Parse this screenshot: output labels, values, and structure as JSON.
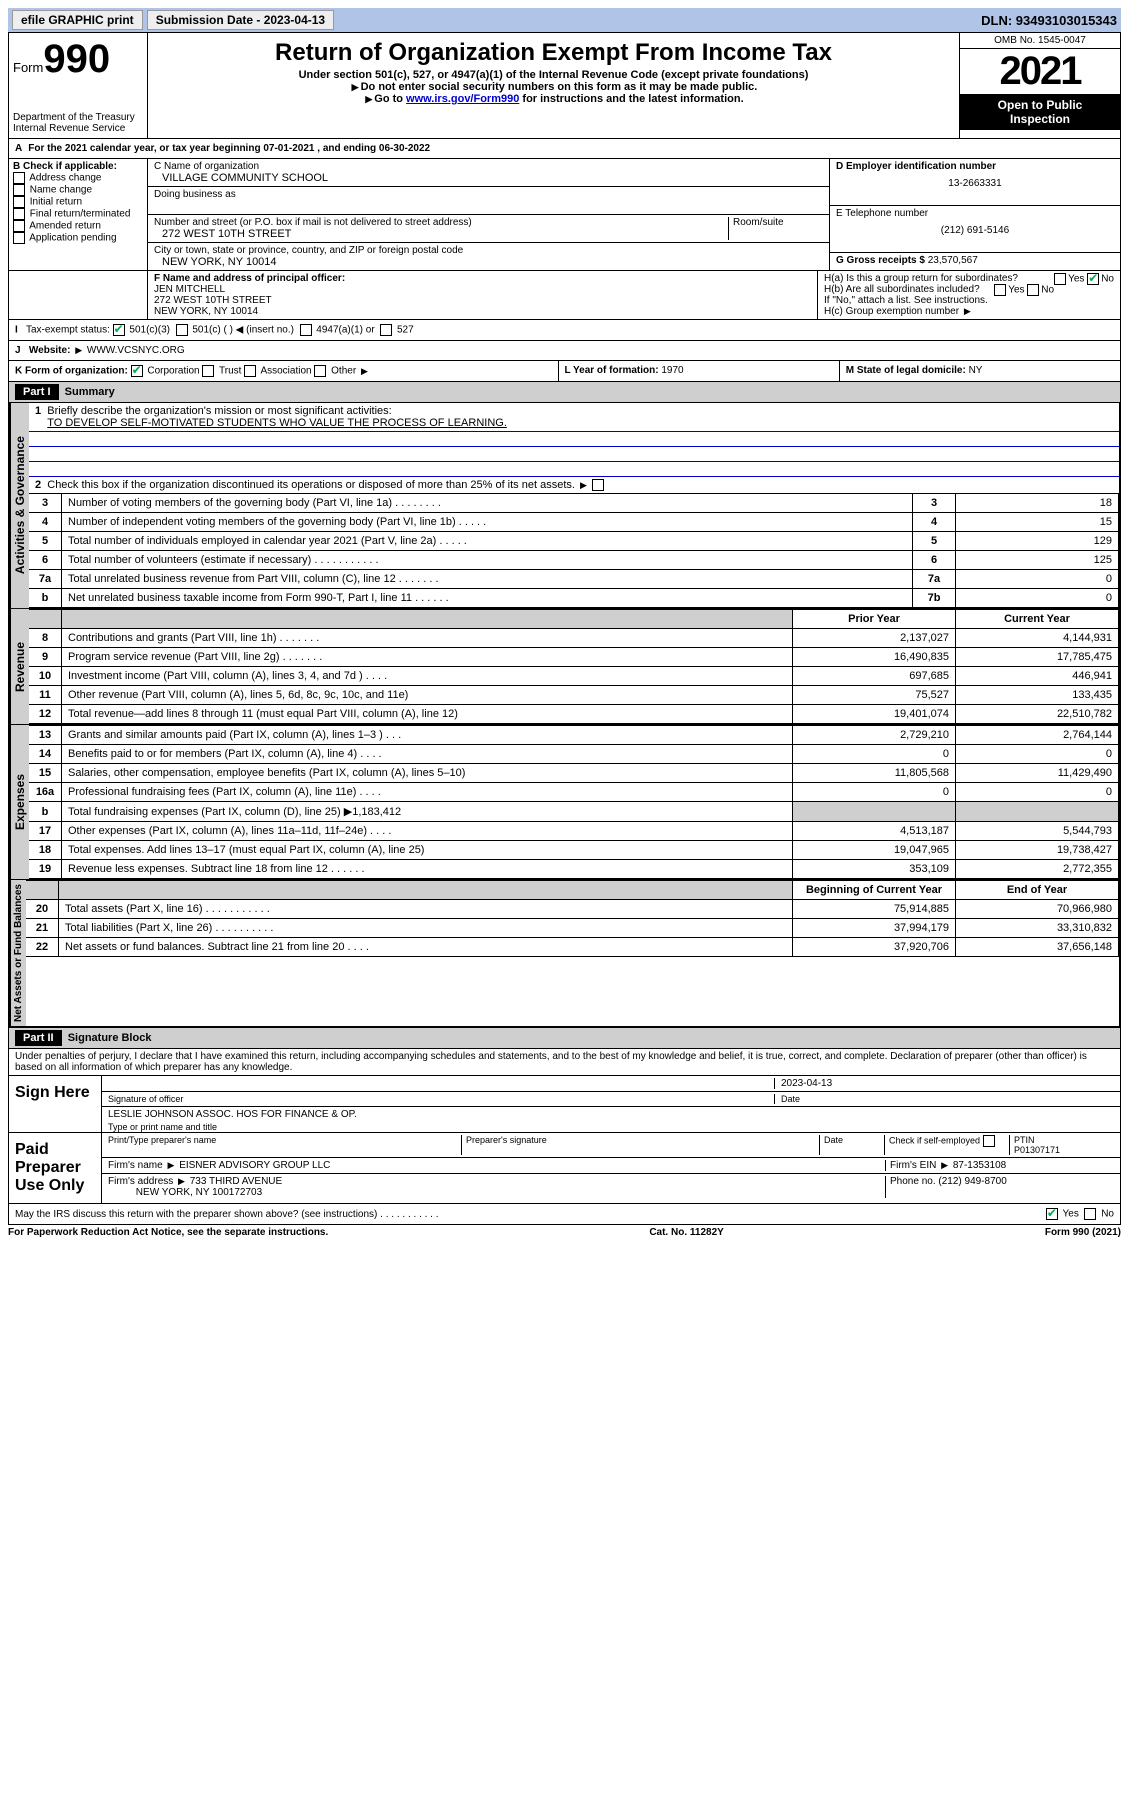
{
  "topbar": {
    "efile": "efile GRAPHIC print",
    "sub_lbl": "Submission Date - 2023-04-13",
    "dln": "DLN: 93493103015343"
  },
  "hdr": {
    "form_pre": "Form",
    "form_no": "990",
    "dept": "Department of the Treasury",
    "irs": "Internal Revenue Service",
    "title": "Return of Organization Exempt From Income Tax",
    "sub1": "Under section 501(c), 527, or 4947(a)(1) of the Internal Revenue Code (except private foundations)",
    "sub2": "Do not enter social security numbers on this form as it may be made public.",
    "sub3_a": "Go to ",
    "sub3_link": "www.irs.gov/Form990",
    "sub3_b": " for instructions and the latest information.",
    "omb": "OMB No. 1545-0047",
    "year": "2021",
    "inspect1": "Open to Public",
    "inspect2": "Inspection"
  },
  "a": {
    "text": "For the 2021 calendar year, or tax year beginning 07-01-2021   , and ending 06-30-2022"
  },
  "b": {
    "title": "B Check if applicable:",
    "items": [
      "Address change",
      "Name change",
      "Initial return",
      "Final return/terminated",
      "Amended return",
      "Application pending"
    ]
  },
  "c": {
    "name_lbl": "C Name of organization",
    "name": "VILLAGE COMMUNITY SCHOOL",
    "dba_lbl": "Doing business as",
    "addr_lbl": "Number and street (or P.O. box if mail is not delivered to street address)",
    "room_lbl": "Room/suite",
    "addr": "272 WEST 10TH STREET",
    "city_lbl": "City or town, state or province, country, and ZIP or foreign postal code",
    "city": "NEW YORK, NY  10014"
  },
  "d": {
    "lbl": "D Employer identification number",
    "val": "13-2663331"
  },
  "e": {
    "lbl": "E Telephone number",
    "val": "(212) 691-5146"
  },
  "g": {
    "lbl": "G Gross receipts $",
    "val": "23,570,567"
  },
  "f": {
    "lbl": "F  Name and address of principal officer:",
    "l1": "JEN MITCHELL",
    "l2": "272 WEST 10TH STREET",
    "l3": "NEW YORK, NY  10014"
  },
  "h": {
    "a": "H(a)  Is this a group return for subordinates?",
    "b": "H(b)  Are all subordinates included?",
    "note": "If \"No,\" attach a list. See instructions.",
    "c": "H(c)  Group exemption number"
  },
  "i": {
    "lbl": "Tax-exempt status:",
    "o1": "501(c)(3)",
    "o2": "501(c) (   )",
    "o2b": "(insert no.)",
    "o3": "4947(a)(1) or",
    "o4": "527"
  },
  "j": {
    "lbl": "Website:",
    "val": "WWW.VCSNYC.ORG"
  },
  "k": {
    "lbl": "K Form of organization:",
    "o1": "Corporation",
    "o2": "Trust",
    "o3": "Association",
    "o4": "Other"
  },
  "l": {
    "lbl": "L Year of formation:",
    "val": "1970"
  },
  "m": {
    "lbl": "M State of legal domicile:",
    "val": "NY"
  },
  "yes": "Yes",
  "no": "No",
  "part1": {
    "hdr": "Part I",
    "title": "Summary",
    "vert1": "Activities & Governance",
    "vert2": "Revenue",
    "vert3": "Expenses",
    "vert4": "Net Assets or Fund Balances",
    "l1a": "Briefly describe the organization's mission or most significant activities:",
    "l1b": "TO DEVELOP SELF-MOTIVATED STUDENTS WHO VALUE THE PROCESS OF LEARNING.",
    "l2": "Check this box      if the organization discontinued its operations or disposed of more than 25% of its net assets.",
    "rows_gov": [
      {
        "n": "3",
        "d": "Number of voting members of the governing body (Part VI, line 1a)   .   .   .   .   .   .   .   .",
        "b": "3",
        "v": "18"
      },
      {
        "n": "4",
        "d": "Number of independent voting members of the governing body (Part VI, line 1b)   .   .   .   .   .",
        "b": "4",
        "v": "15"
      },
      {
        "n": "5",
        "d": "Total number of individuals employed in calendar year 2021 (Part V, line 2a)   .   .   .   .   .",
        "b": "5",
        "v": "129"
      },
      {
        "n": "6",
        "d": "Total number of volunteers (estimate if necessary)   .   .   .   .   .   .   .   .   .   .   .",
        "b": "6",
        "v": "125"
      },
      {
        "n": "7a",
        "d": "Total unrelated business revenue from Part VIII, column (C), line 12   .   .   .   .   .   .   .",
        "b": "7a",
        "v": "0"
      },
      {
        "n": "b",
        "d": "Net unrelated business taxable income from Form 990-T, Part I, line 11   .   .   .   .   .   .",
        "b": "7b",
        "v": "0"
      }
    ],
    "col_prior": "Prior Year",
    "col_curr": "Current Year",
    "rows_rev": [
      {
        "n": "8",
        "d": "Contributions and grants (Part VIII, line 1h)   .   .   .   .   .   .   .",
        "p": "2,137,027",
        "c": "4,144,931"
      },
      {
        "n": "9",
        "d": "Program service revenue (Part VIII, line 2g)   .   .   .   .   .   .   .",
        "p": "16,490,835",
        "c": "17,785,475"
      },
      {
        "n": "10",
        "d": "Investment income (Part VIII, column (A), lines 3, 4, and 7d )   .   .   .   .",
        "p": "697,685",
        "c": "446,941"
      },
      {
        "n": "11",
        "d": "Other revenue (Part VIII, column (A), lines 5, 6d, 8c, 9c, 10c, and 11e)",
        "p": "75,527",
        "c": "133,435"
      },
      {
        "n": "12",
        "d": "Total revenue—add lines 8 through 11 (must equal Part VIII, column (A), line 12)",
        "p": "19,401,074",
        "c": "22,510,782"
      }
    ],
    "rows_exp": [
      {
        "n": "13",
        "d": "Grants and similar amounts paid (Part IX, column (A), lines 1–3 )   .   .   .",
        "p": "2,729,210",
        "c": "2,764,144"
      },
      {
        "n": "14",
        "d": "Benefits paid to or for members (Part IX, column (A), line 4)   .   .   .   .",
        "p": "0",
        "c": "0"
      },
      {
        "n": "15",
        "d": "Salaries, other compensation, employee benefits (Part IX, column (A), lines 5–10)",
        "p": "11,805,568",
        "c": "11,429,490"
      },
      {
        "n": "16a",
        "d": "Professional fundraising fees (Part IX, column (A), line 11e)   .   .   .   .",
        "p": "0",
        "c": "0"
      },
      {
        "n": "b",
        "d": "Total fundraising expenses (Part IX, column (D), line 25) ▶1,183,412",
        "p": "",
        "c": "",
        "shaded": true
      },
      {
        "n": "17",
        "d": "Other expenses (Part IX, column (A), lines 11a–11d, 11f–24e)   .   .   .   .",
        "p": "4,513,187",
        "c": "5,544,793"
      },
      {
        "n": "18",
        "d": "Total expenses. Add lines 13–17 (must equal Part IX, column (A), line 25)",
        "p": "19,047,965",
        "c": "19,738,427"
      },
      {
        "n": "19",
        "d": "Revenue less expenses. Subtract line 18 from line 12   .   .   .   .   .   .",
        "p": "353,109",
        "c": "2,772,355"
      }
    ],
    "col_beg": "Beginning of Current Year",
    "col_end": "End of Year",
    "rows_net": [
      {
        "n": "20",
        "d": "Total assets (Part X, line 16)   .   .   .   .   .   .   .   .   .   .   .",
        "p": "75,914,885",
        "c": "70,966,980"
      },
      {
        "n": "21",
        "d": "Total liabilities (Part X, line 26)   .   .   .   .   .   .   .   .   .   .",
        "p": "37,994,179",
        "c": "33,310,832"
      },
      {
        "n": "22",
        "d": "Net assets or fund balances. Subtract line 21 from line 20   .   .   .   .",
        "p": "37,920,706",
        "c": "37,656,148"
      }
    ]
  },
  "part2": {
    "hdr": "Part II",
    "title": "Signature Block",
    "decl": "Under penalties of perjury, I declare that I have examined this return, including accompanying schedules and statements, and to the best of my knowledge and belief, it is true, correct, and complete. Declaration of preparer (other than officer) is based on all information of which preparer has any knowledge.",
    "sign_here": "Sign Here",
    "sig_off": "Signature of officer",
    "sig_date": "2023-04-13",
    "date_lbl": "Date",
    "name_title": "LESLIE JOHNSON ASSOC. HOS FOR FINANCE & OP.",
    "name_lbl": "Type or print name and title",
    "paid": "Paid Preparer Use Only",
    "prep_name_lbl": "Print/Type preparer's name",
    "prep_sig_lbl": "Preparer's signature",
    "check_self": "Check        if self-employed",
    "ptin_lbl": "PTIN",
    "ptin": "P01307171",
    "firm_name_lbl": "Firm's name   ",
    "firm_name": "EISNER ADVISORY GROUP LLC",
    "firm_ein_lbl": "Firm's EIN ",
    "firm_ein": "87-1353108",
    "firm_addr_lbl": "Firm's address ",
    "firm_addr1": "733 THIRD AVENUE",
    "firm_addr2": "NEW YORK, NY  100172703",
    "phone_lbl": "Phone no.",
    "phone": "(212) 949-8700",
    "may": "May the IRS discuss this return with the preparer shown above? (see instructions)   .   .   .   .   .   .   .   .   .   .   ."
  },
  "footer": {
    "pra": "For Paperwork Reduction Act Notice, see the separate instructions.",
    "cat": "Cat. No. 11282Y",
    "form": "Form 990 (2021)"
  }
}
